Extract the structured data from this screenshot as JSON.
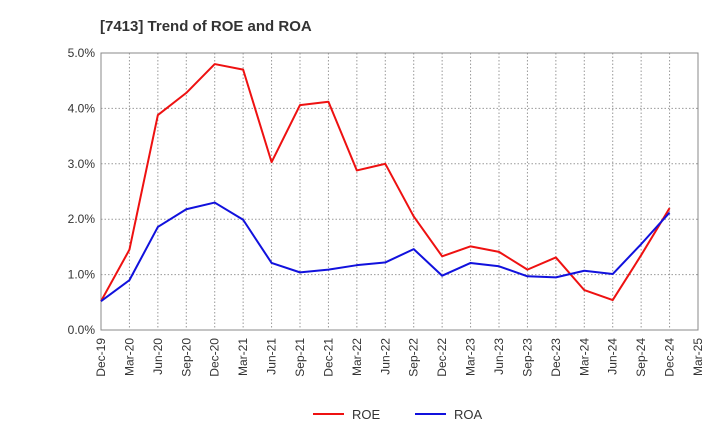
{
  "chart_data": {
    "type": "line",
    "title": "[7413]  Trend of ROE and ROA",
    "xlabel": "",
    "ylabel": "",
    "x": [
      "Dec-19",
      "Mar-20",
      "Jun-20",
      "Sep-20",
      "Dec-20",
      "Mar-21",
      "Jun-21",
      "Sep-21",
      "Dec-21",
      "Mar-22",
      "Jun-22",
      "Sep-22",
      "Dec-22",
      "Mar-23",
      "Jun-23",
      "Sep-23",
      "Dec-23",
      "Mar-24",
      "Jun-24",
      "Sep-24",
      "Dec-24",
      "Mar-25"
    ],
    "ylim": [
      0,
      5
    ],
    "yticks": [
      "0.0%",
      "1.0%",
      "2.0%",
      "3.0%",
      "4.0%",
      "5.0%"
    ],
    "grid": true,
    "legend_position": "bottom",
    "series": [
      {
        "name": "ROE",
        "color": "#ee1111",
        "values": [
          0.52,
          1.45,
          3.88,
          4.28,
          4.8,
          4.7,
          3.03,
          4.06,
          4.12,
          2.88,
          3.0,
          2.05,
          1.33,
          1.51,
          1.41,
          1.09,
          1.31,
          0.72,
          0.54,
          1.35,
          2.2,
          null
        ]
      },
      {
        "name": "ROA",
        "color": "#1111dd",
        "values": [
          0.52,
          0.9,
          1.86,
          2.18,
          2.3,
          1.99,
          1.21,
          1.04,
          1.09,
          1.17,
          1.22,
          1.46,
          0.98,
          1.21,
          1.15,
          0.97,
          0.95,
          1.07,
          1.01,
          1.55,
          2.12,
          null
        ]
      }
    ]
  }
}
